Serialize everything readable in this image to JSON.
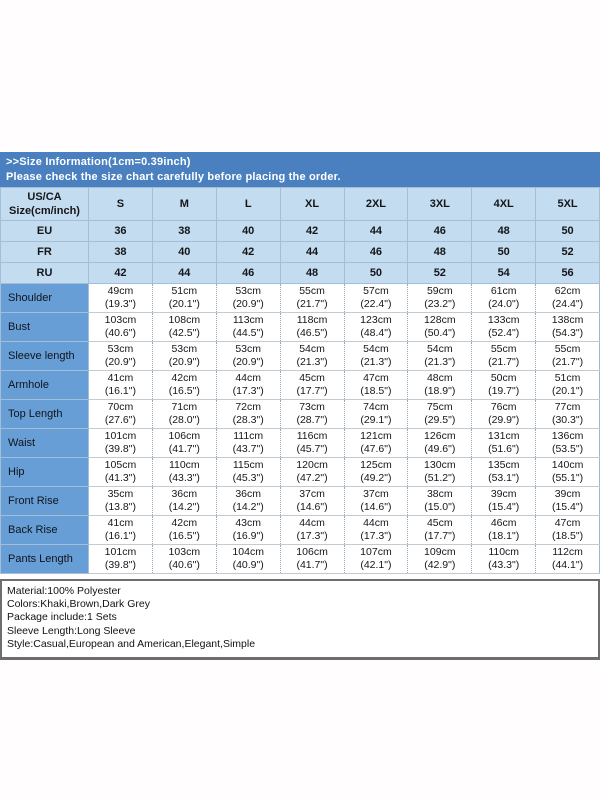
{
  "header": {
    "line1": ">>Size Information(1cm=0.39inch)",
    "line2": "Please check the size chart carefully before placing the order."
  },
  "table": {
    "corner_line1": "US/CA",
    "corner_line2": "Size(cm/inch)",
    "size_headers": [
      "S",
      "M",
      "L",
      "XL",
      "2XL",
      "3XL",
      "4XL",
      "5XL"
    ],
    "region_rows": [
      {
        "label": "EU",
        "values": [
          "36",
          "38",
          "40",
          "42",
          "44",
          "46",
          "48",
          "50"
        ]
      },
      {
        "label": "FR",
        "values": [
          "38",
          "40",
          "42",
          "44",
          "46",
          "48",
          "50",
          "52"
        ]
      },
      {
        "label": "RU",
        "values": [
          "42",
          "44",
          "46",
          "48",
          "50",
          "52",
          "54",
          "56"
        ]
      }
    ],
    "measurement_rows": [
      {
        "label": "Shoulder",
        "cm": [
          "49cm",
          "51cm",
          "53cm",
          "55cm",
          "57cm",
          "59cm",
          "61cm",
          "62cm"
        ],
        "inch": [
          "(19.3\")",
          "(20.1\")",
          "(20.9\")",
          "(21.7\")",
          "(22.4\")",
          "(23.2\")",
          "(24.0\")",
          "(24.4\")"
        ]
      },
      {
        "label": "Bust",
        "cm": [
          "103cm",
          "108cm",
          "113cm",
          "118cm",
          "123cm",
          "128cm",
          "133cm",
          "138cm"
        ],
        "inch": [
          "(40.6\")",
          "(42.5\")",
          "(44.5\")",
          "(46.5\")",
          "(48.4\")",
          "(50.4\")",
          "(52.4\")",
          "(54.3\")"
        ]
      },
      {
        "label": "Sleeve length",
        "cm": [
          "53cm",
          "53cm",
          "53cm",
          "54cm",
          "54cm",
          "54cm",
          "55cm",
          "55cm"
        ],
        "inch": [
          "(20.9\")",
          "(20.9\")",
          "(20.9\")",
          "(21.3\")",
          "(21.3\")",
          "(21.3\")",
          "(21.7\")",
          "(21.7\")"
        ]
      },
      {
        "label": "Armhole",
        "cm": [
          "41cm",
          "42cm",
          "44cm",
          "45cm",
          "47cm",
          "48cm",
          "50cm",
          "51cm"
        ],
        "inch": [
          "(16.1\")",
          "(16.5\")",
          "(17.3\")",
          "(17.7\")",
          "(18.5\")",
          "(18.9\")",
          "(19.7\")",
          "(20.1\")"
        ]
      },
      {
        "label": "Top Length",
        "cm": [
          "70cm",
          "71cm",
          "72cm",
          "73cm",
          "74cm",
          "75cm",
          "76cm",
          "77cm"
        ],
        "inch": [
          "(27.6\")",
          "(28.0\")",
          "(28.3\")",
          "(28.7\")",
          "(29.1\")",
          "(29.5\")",
          "(29.9\")",
          "(30.3\")"
        ]
      },
      {
        "label": "Waist",
        "cm": [
          "101cm",
          "106cm",
          "111cm",
          "116cm",
          "121cm",
          "126cm",
          "131cm",
          "136cm"
        ],
        "inch": [
          "(39.8\")",
          "(41.7\")",
          "(43.7\")",
          "(45.7\")",
          "(47.6\")",
          "(49.6\")",
          "(51.6\")",
          "(53.5\")"
        ]
      },
      {
        "label": "Hip",
        "cm": [
          "105cm",
          "110cm",
          "115cm",
          "120cm",
          "125cm",
          "130cm",
          "135cm",
          "140cm"
        ],
        "inch": [
          "(41.3\")",
          "(43.3\")",
          "(45.3\")",
          "(47.2\")",
          "(49.2\")",
          "(51.2\")",
          "(53.1\")",
          "(55.1\")"
        ]
      },
      {
        "label": "Front Rise",
        "cm": [
          "35cm",
          "36cm",
          "36cm",
          "37cm",
          "37cm",
          "38cm",
          "39cm",
          "39cm"
        ],
        "inch": [
          "(13.8\")",
          "(14.2\")",
          "(14.2\")",
          "(14.6\")",
          "(14.6\")",
          "(15.0\")",
          "(15.4\")",
          "(15.4\")"
        ]
      },
      {
        "label": "Back Rise",
        "cm": [
          "41cm",
          "42cm",
          "43cm",
          "44cm",
          "44cm",
          "45cm",
          "46cm",
          "47cm"
        ],
        "inch": [
          "(16.1\")",
          "(16.5\")",
          "(16.9\")",
          "(17.3\")",
          "(17.3\")",
          "(17.7\")",
          "(18.1\")",
          "(18.5\")"
        ]
      },
      {
        "label": "Pants Length",
        "cm": [
          "101cm",
          "103cm",
          "104cm",
          "106cm",
          "107cm",
          "109cm",
          "110cm",
          "112cm"
        ],
        "inch": [
          "(39.8\")",
          "(40.6\")",
          "(40.9\")",
          "(41.7\")",
          "(42.1\")",
          "(42.9\")",
          "(43.3\")",
          "(44.1\")"
        ]
      }
    ]
  },
  "details": {
    "lines": [
      "Material:100% Polyester",
      "Colors:Khaki,Brown,Dark Grey",
      "Package include:1 Sets",
      "Sleeve Length:Long Sleeve",
      "Style:Casual,European and American,Elegant,Simple"
    ]
  },
  "colors": {
    "title_band_bg": "#4b80c0",
    "header_cell_bg": "#c3dcef",
    "row_label_bg": "#669ed5",
    "detail_box_border": "#6e6e6e",
    "title_text": "#ffffff",
    "body_text": "#1c1c1c"
  }
}
